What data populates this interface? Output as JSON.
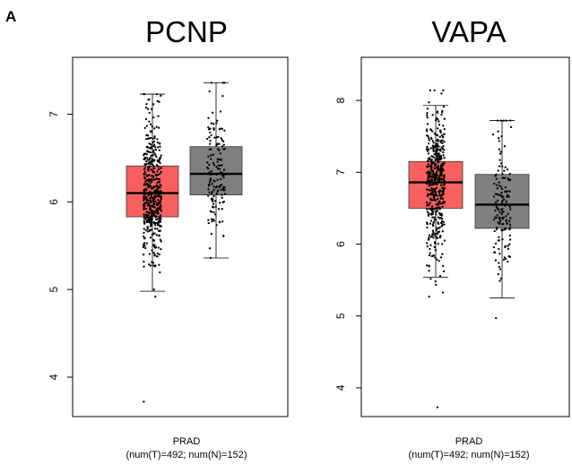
{
  "panel_label": "A",
  "colors": {
    "tumor_box": "#F8605F",
    "normal_box": "#808080",
    "points": "#000000",
    "axes": "#000000"
  },
  "chart_data": [
    {
      "type": "boxplot",
      "title": "PCNP",
      "xlabel": "PRAD",
      "xsublabel": "(num(T)=492; num(N)=152)",
      "ylabel": "",
      "ylim": [
        3.55,
        7.65
      ],
      "yticks": [
        "4",
        "5",
        "6",
        "7"
      ],
      "grid": false,
      "jitter_points": true,
      "boxes": [
        {
          "group": "T",
          "n": 492,
          "color": "#F8605F",
          "whisker_low": 4.98,
          "q1": 5.83,
          "median": 6.1,
          "q3": 6.41,
          "whisker_high": 7.23,
          "min": 3.72,
          "max": 7.23
        },
        {
          "group": "N",
          "n": 152,
          "color": "#808080",
          "whisker_low": 5.36,
          "q1": 6.08,
          "median": 6.32,
          "q3": 6.63,
          "whisker_high": 7.36,
          "min": 5.36,
          "max": 7.36
        }
      ]
    },
    {
      "type": "boxplot",
      "title": "VAPA",
      "xlabel": "PRAD",
      "xsublabel": "(num(T)=492; num(N)=152)",
      "ylabel": "",
      "ylim": [
        3.6,
        8.6
      ],
      "yticks": [
        "4",
        "5",
        "6",
        "7",
        "8"
      ],
      "grid": false,
      "jitter_points": true,
      "boxes": [
        {
          "group": "T",
          "n": 492,
          "color": "#F8605F",
          "whisker_low": 5.54,
          "q1": 6.5,
          "median": 6.86,
          "q3": 7.15,
          "whisker_high": 7.93,
          "min": 3.73,
          "max": 8.14
        },
        {
          "group": "N",
          "n": 152,
          "color": "#808080",
          "whisker_low": 5.25,
          "q1": 6.22,
          "median": 6.55,
          "q3": 6.97,
          "whisker_high": 7.72,
          "min": 4.97,
          "max": 7.72
        }
      ]
    }
  ]
}
